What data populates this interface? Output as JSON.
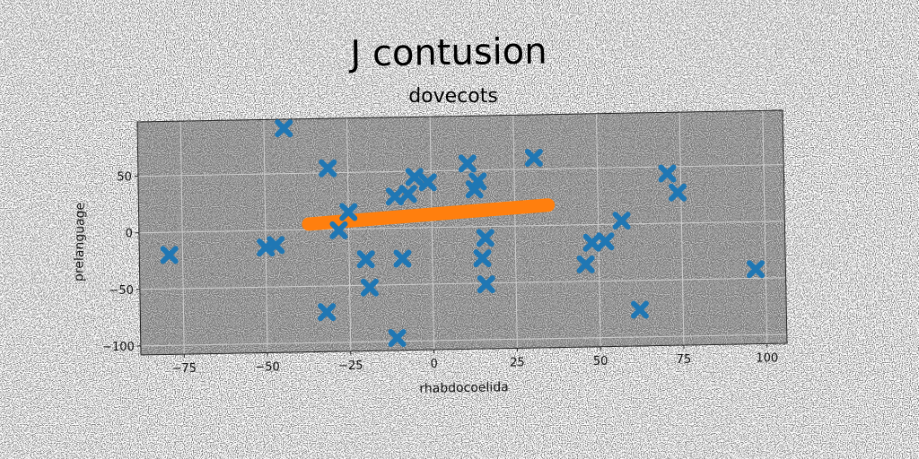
{
  "chart_data": {
    "type": "scatter",
    "title": "J contusion",
    "subtitle": "dovecots",
    "xlabel": "rhabdocoelida",
    "ylabel": "prelanguage",
    "xlim": [
      -88,
      106
    ],
    "ylim": [
      -108,
      98
    ],
    "xticks": [
      -75,
      -50,
      -25,
      0,
      25,
      50,
      75,
      100
    ],
    "yticks": [
      -100,
      -50,
      0,
      50
    ],
    "grid": true,
    "colors": {
      "plot_background": "#7a7a7a",
      "grid": "#cfcfcf",
      "scatter": "#1f77b4",
      "line": "#ff7f0e"
    },
    "series": [
      {
        "type": "scatter",
        "marker": "x",
        "points": [
          [
            -44,
            90
          ],
          [
            -79,
            -20
          ],
          [
            -50,
            -15
          ],
          [
            -47,
            -13
          ],
          [
            -31,
            54
          ],
          [
            -25,
            15
          ],
          [
            -28,
            -1
          ],
          [
            -20,
            -27
          ],
          [
            -19,
            -52
          ],
          [
            -32,
            -73
          ],
          [
            -11,
            28
          ],
          [
            -7,
            30
          ],
          [
            -5,
            45
          ],
          [
            -1,
            40
          ],
          [
            -9,
            -27
          ],
          [
            -11,
            -97
          ],
          [
            11,
            56
          ],
          [
            13,
            33
          ],
          [
            14,
            40
          ],
          [
            15,
            -28
          ],
          [
            16,
            -10
          ],
          [
            16,
            -51
          ],
          [
            31,
            60
          ],
          [
            46,
            -35
          ],
          [
            48,
            -16
          ],
          [
            52,
            -15
          ],
          [
            57,
            3
          ],
          [
            62,
            -76
          ],
          [
            71,
            44
          ],
          [
            74,
            27
          ],
          [
            97,
            -42
          ]
        ]
      },
      {
        "type": "line",
        "points": [
          [
            -37,
            5
          ],
          [
            35,
            18
          ]
        ]
      }
    ]
  }
}
